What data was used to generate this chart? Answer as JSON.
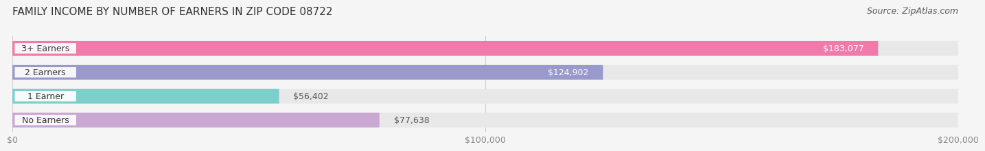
{
  "title": "FAMILY INCOME BY NUMBER OF EARNERS IN ZIP CODE 08722",
  "source": "Source: ZipAtlas.com",
  "categories": [
    "No Earners",
    "1 Earner",
    "2 Earners",
    "3+ Earners"
  ],
  "values": [
    77638,
    56402,
    124902,
    183077
  ],
  "bar_colors": [
    "#c9a8d4",
    "#7dcfcc",
    "#9999cc",
    "#f07aaa"
  ],
  "bar_bg_color": "#e8e8e8",
  "label_colors": [
    "#555555",
    "#555555",
    "#ffffff",
    "#ffffff"
  ],
  "xlim": [
    0,
    200000
  ],
  "xticks": [
    0,
    100000,
    200000
  ],
  "xtick_labels": [
    "$0",
    "$100,000",
    "$200,000"
  ],
  "background_color": "#f5f5f5",
  "title_fontsize": 11,
  "source_fontsize": 9,
  "bar_label_fontsize": 9,
  "tick_fontsize": 9,
  "category_fontsize": 9
}
